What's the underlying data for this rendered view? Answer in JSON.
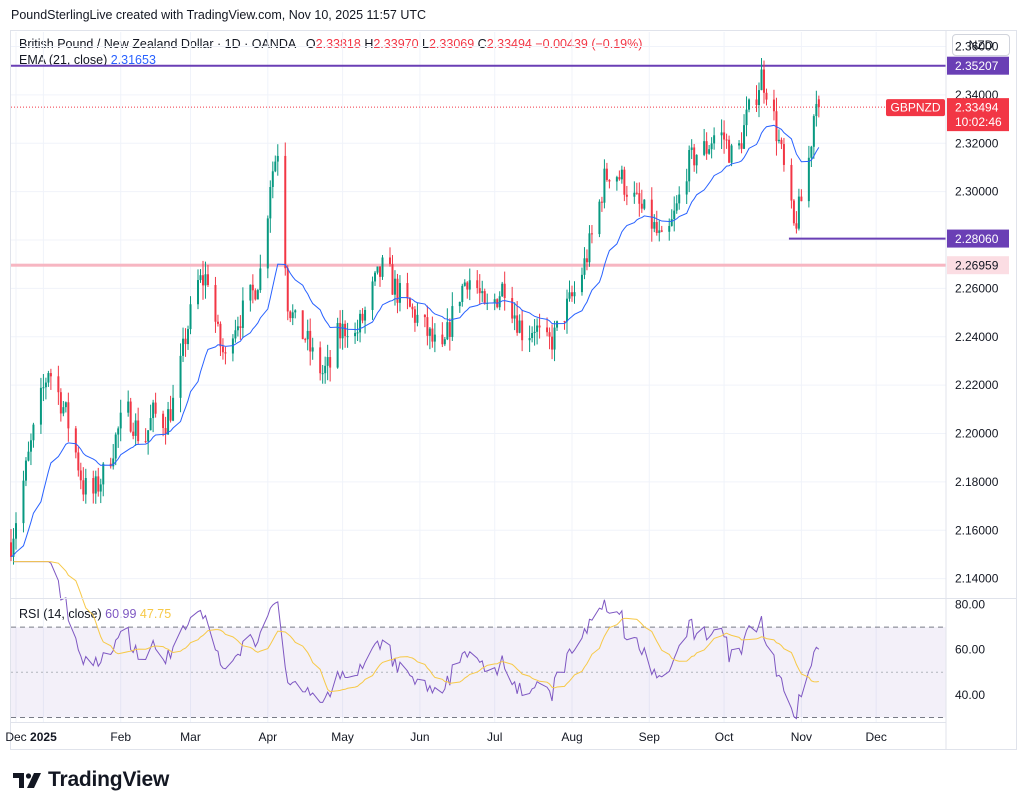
{
  "credit": "PoundSterlingLive created with TradingView.com, Nov 10, 2025 11:57 UTC",
  "legend": {
    "symbol": "British Pound / New Zealand Dollar · 1D · OANDA",
    "o_label": "O",
    "o": "2.33818",
    "h_label": "H",
    "h": "2.33970",
    "l_label": "L",
    "l": "2.33069",
    "c_label": "C",
    "c": "2.33494",
    "change": "−0.00439 (−0.19%)",
    "ema_label": "EMA (21, close)",
    "ema_value": "2.31653",
    "rsi_label": "RSI (14, close)",
    "rsi_value": "60.99",
    "rsi_ma_value": "47.75"
  },
  "currency": "NZD",
  "footer": {
    "brand": "TradingView"
  },
  "colors": {
    "up": "#089981",
    "down": "#f23645",
    "ema": "#2962ff",
    "rsi": "#7e57c2",
    "rsi_ma": "#f7c948",
    "level": "#6a3fb5",
    "support": "#f7b6c2"
  },
  "chart_data": {
    "type": "candlestick",
    "symbol": "GBPNZD",
    "price_axis": {
      "ticks": [
        "2.36000",
        "2.34000",
        "2.32000",
        "2.30000",
        "2.28000",
        "2.26000",
        "2.24000",
        "2.22000",
        "2.20000",
        "2.18000",
        "2.16000",
        "2.14000"
      ],
      "range": [
        2.132,
        2.366
      ]
    },
    "x_axis": {
      "labels": [
        {
          "label": "Dec",
          "day": -11
        },
        {
          "label": "2025",
          "day": 0
        },
        {
          "label": "Feb",
          "day": 31
        },
        {
          "label": "Mar",
          "day": 59
        },
        {
          "label": "Apr",
          "day": 90
        },
        {
          "label": "May",
          "day": 120
        },
        {
          "label": "Jun",
          "day": 151
        },
        {
          "label": "Jul",
          "day": 181
        },
        {
          "label": "Aug",
          "day": 212
        },
        {
          "label": "Sep",
          "day": 243
        },
        {
          "label": "Oct",
          "day": 273
        },
        {
          "label": "Nov",
          "day": 304
        },
        {
          "label": "Dec",
          "day": 334
        }
      ],
      "range_days": [
        -13,
        362
      ]
    },
    "price_path": [
      [
        -13,
        2.155
      ],
      [
        -8,
        2.18
      ],
      [
        -3,
        2.205
      ],
      [
        2,
        2.227
      ],
      [
        4,
        2.222
      ],
      [
        9,
        2.208
      ],
      [
        13,
        2.192
      ],
      [
        16,
        2.178
      ],
      [
        20,
        2.175
      ],
      [
        25,
        2.185
      ],
      [
        29,
        2.198
      ],
      [
        33,
        2.21
      ],
      [
        36,
        2.205
      ],
      [
        40,
        2.195
      ],
      [
        44,
        2.208
      ],
      [
        49,
        2.205
      ],
      [
        53,
        2.215
      ],
      [
        57,
        2.24
      ],
      [
        62,
        2.262
      ],
      [
        66,
        2.265
      ],
      [
        70,
        2.24
      ],
      [
        73,
        2.23
      ],
      [
        76,
        2.245
      ],
      [
        80,
        2.25
      ],
      [
        84,
        2.258
      ],
      [
        88,
        2.27
      ],
      [
        91,
        2.305
      ],
      [
        94,
        2.318
      ],
      [
        96,
        2.29
      ],
      [
        98,
        2.255
      ],
      [
        101,
        2.245
      ],
      [
        105,
        2.24
      ],
      [
        108,
        2.232
      ],
      [
        112,
        2.225
      ],
      [
        115,
        2.228
      ],
      [
        118,
        2.24
      ],
      [
        122,
        2.245
      ],
      [
        125,
        2.24
      ],
      [
        129,
        2.25
      ],
      [
        133,
        2.262
      ],
      [
        137,
        2.27
      ],
      [
        140,
        2.262
      ],
      [
        144,
        2.255
      ],
      [
        148,
        2.25
      ],
      [
        152,
        2.245
      ],
      [
        156,
        2.238
      ],
      [
        160,
        2.232
      ],
      [
        163,
        2.245
      ],
      [
        167,
        2.258
      ],
      [
        170,
        2.265
      ],
      [
        174,
        2.26
      ],
      [
        177,
        2.25
      ],
      [
        181,
        2.255
      ],
      [
        185,
        2.262
      ],
      [
        189,
        2.25
      ],
      [
        193,
        2.24
      ],
      [
        197,
        2.245
      ],
      [
        201,
        2.235
      ],
      [
        205,
        2.24
      ],
      [
        209,
        2.25
      ],
      [
        213,
        2.258
      ],
      [
        217,
        2.27
      ],
      [
        221,
        2.285
      ],
      [
        225,
        2.305
      ],
      [
        228,
        2.31
      ],
      [
        232,
        2.305
      ],
      [
        236,
        2.298
      ],
      [
        240,
        2.292
      ],
      [
        244,
        2.287
      ],
      [
        248,
        2.278
      ],
      [
        251,
        2.283
      ],
      [
        254,
        2.293
      ],
      [
        258,
        2.31
      ],
      [
        262,
        2.316
      ],
      [
        266,
        2.318
      ],
      [
        270,
        2.325
      ],
      [
        273,
        2.322
      ],
      [
        276,
        2.315
      ],
      [
        279,
        2.318
      ],
      [
        282,
        2.33
      ],
      [
        285,
        2.338
      ],
      [
        288,
        2.348
      ],
      [
        290,
        2.343
      ],
      [
        293,
        2.33
      ],
      [
        296,
        2.315
      ],
      [
        299,
        2.296
      ],
      [
        301,
        2.285
      ],
      [
        303,
        2.292
      ],
      [
        306,
        2.305
      ],
      [
        308,
        2.322
      ],
      [
        310,
        2.342
      ],
      [
        312,
        2.337
      ]
    ],
    "ema_21": {
      "last": 2.31653
    },
    "rsi": {
      "axis_ticks": [
        "80.00",
        "60.00",
        "40.00"
      ],
      "range": [
        28,
        82
      ],
      "upper_band": 70,
      "mid_line": 50,
      "lower_band": 30,
      "last": 60.99,
      "ma_last": 47.75
    },
    "levels": [
      {
        "label": "2.35207",
        "price": 2.35207,
        "kind": "line",
        "style": "solid"
      },
      {
        "label": "2.28060",
        "price": 2.2806,
        "kind": "line",
        "style": "solid",
        "from_day": 299
      },
      {
        "label": "2.26959",
        "price": 2.26959,
        "kind": "band",
        "style": "solid"
      }
    ],
    "current_price": {
      "label": "2.33494",
      "price": 2.33494,
      "symbol_tag": "GBPNZD",
      "countdown": "10:02:46"
    }
  }
}
